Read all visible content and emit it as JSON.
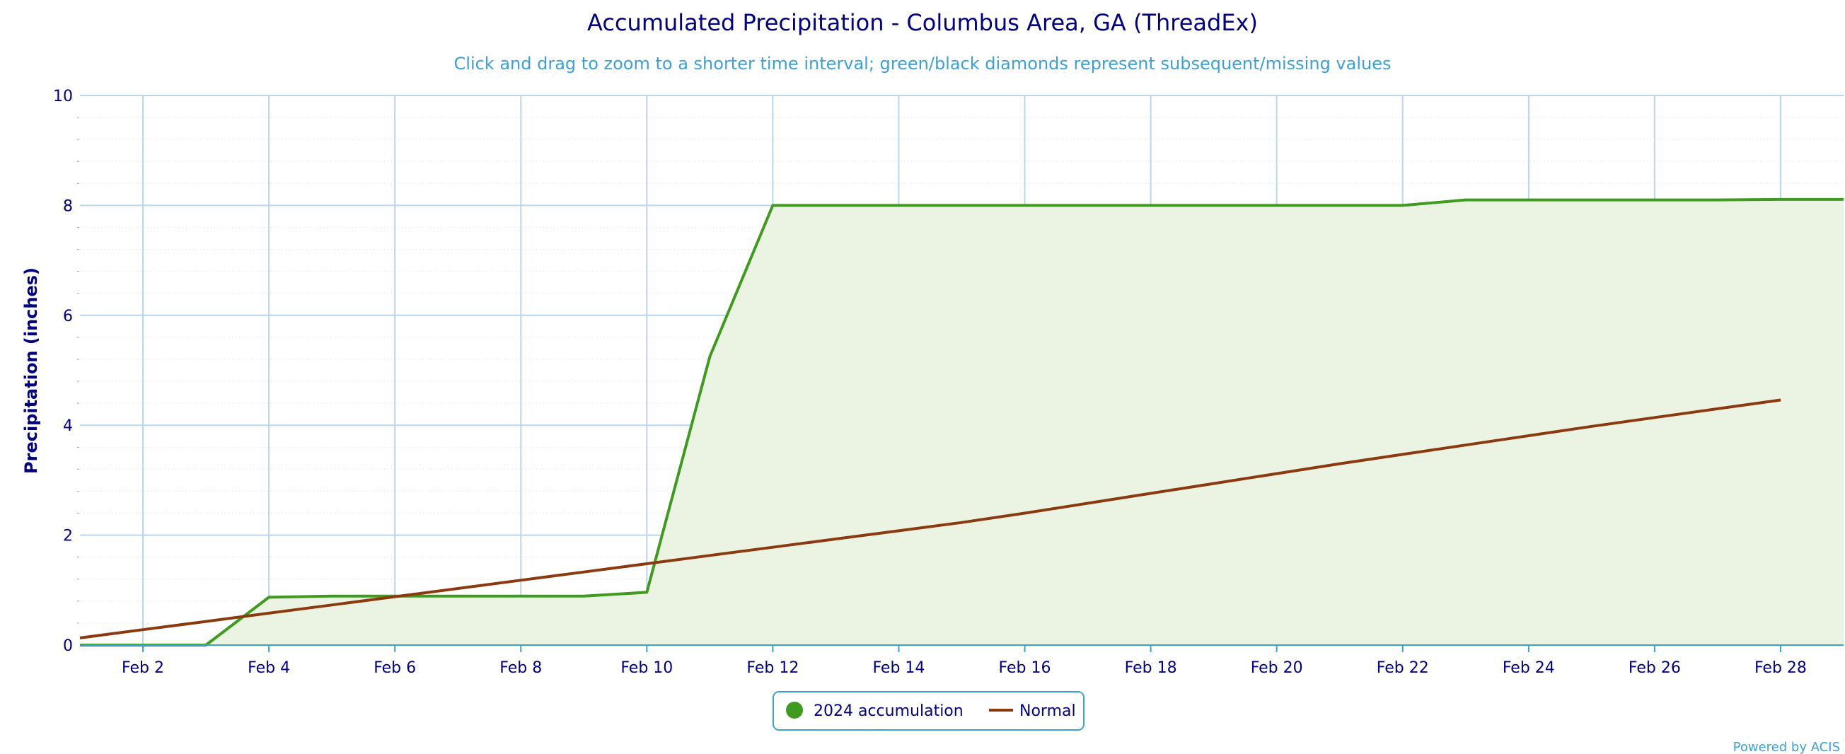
{
  "chart_data": {
    "type": "line",
    "title": "Accumulated Precipitation - Columbus Area, GA (ThreadEx)",
    "subtitle": "Click and drag to zoom to a shorter time interval; green/black diamonds represent subsequent/missing values",
    "xlabel": "",
    "ylabel": "Precipitation (inches)",
    "ylim": [
      0,
      10
    ],
    "yticks": [
      "0",
      "2",
      "4",
      "6",
      "8",
      "10"
    ],
    "xlim": [
      "Feb 1",
      "Feb 29"
    ],
    "xticks": [
      "Feb 2",
      "Feb 4",
      "Feb 6",
      "Feb 8",
      "Feb 10",
      "Feb 12",
      "Feb 14",
      "Feb 16",
      "Feb 18",
      "Feb 20",
      "Feb 22",
      "Feb 24",
      "Feb 26",
      "Feb 28"
    ],
    "grid": true,
    "legend_position": "bottom-center",
    "series": [
      {
        "name": "2024 accumulation",
        "color": "#3f9b1f",
        "fill": true,
        "x": [
          "Feb 1",
          "Feb 2",
          "Feb 3",
          "Feb 4",
          "Feb 5",
          "Feb 6",
          "Feb 7",
          "Feb 8",
          "Feb 9",
          "Feb 10",
          "Feb 11",
          "Feb 12",
          "Feb 13",
          "Feb 14",
          "Feb 15",
          "Feb 16",
          "Feb 17",
          "Feb 18",
          "Feb 19",
          "Feb 20",
          "Feb 21",
          "Feb 22",
          "Feb 23",
          "Feb 24",
          "Feb 25",
          "Feb 26",
          "Feb 27",
          "Feb 28",
          "Feb 29"
        ],
        "values": [
          0,
          0,
          0,
          0.87,
          0.89,
          0.89,
          0.89,
          0.89,
          0.89,
          0.96,
          5.25,
          8.0,
          8.0,
          8.0,
          8.0,
          8.0,
          8.0,
          8.0,
          8.0,
          8.0,
          8.0,
          8.0,
          8.1,
          8.1,
          8.1,
          8.1,
          8.1,
          8.11,
          8.11
        ]
      },
      {
        "name": "Normal",
        "color": "#8b3a0f",
        "fill": false,
        "x": [
          "Feb 1",
          "Feb 2",
          "Feb 3",
          "Feb 4",
          "Feb 5",
          "Feb 6",
          "Feb 7",
          "Feb 8",
          "Feb 9",
          "Feb 10",
          "Feb 11",
          "Feb 12",
          "Feb 13",
          "Feb 14",
          "Feb 15",
          "Feb 16",
          "Feb 17",
          "Feb 18",
          "Feb 19",
          "Feb 20",
          "Feb 21",
          "Feb 22",
          "Feb 23",
          "Feb 24",
          "Feb 25",
          "Feb 26",
          "Feb 27",
          "Feb 28"
        ],
        "values": [
          0.13,
          0.28,
          0.43,
          0.58,
          0.73,
          0.88,
          1.03,
          1.18,
          1.33,
          1.48,
          1.63,
          1.78,
          1.93,
          2.08,
          2.23,
          2.4,
          2.58,
          2.76,
          2.94,
          3.12,
          3.3,
          3.47,
          3.64,
          3.81,
          3.98,
          4.14,
          4.3,
          4.46
        ]
      }
    ],
    "credit": "Powered by ACIS"
  },
  "colors": {
    "grid": "#b6d7ee",
    "axis": "#3aa0d8",
    "accumulation_fill": "#ebf4e3"
  }
}
